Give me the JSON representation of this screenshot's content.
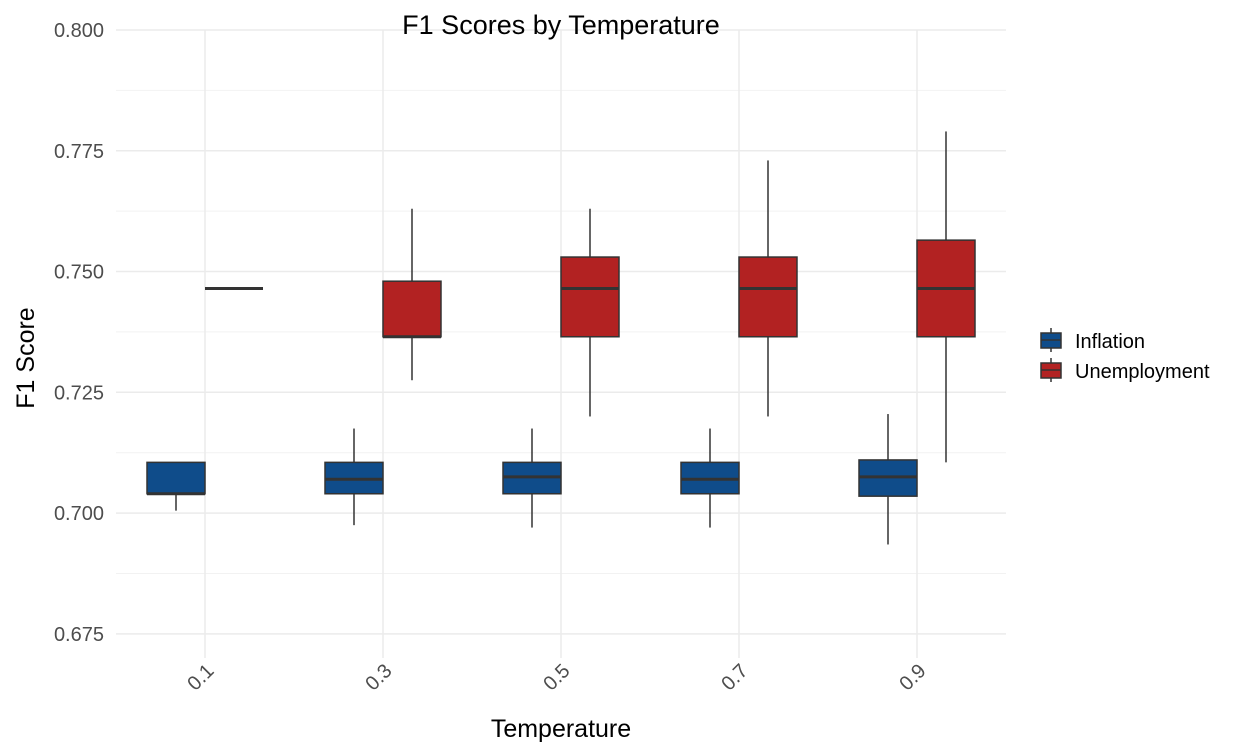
{
  "chart_data": {
    "type": "boxplot",
    "title": "F1 Scores by Temperature",
    "xlabel": "Temperature",
    "ylabel": "F1 Score",
    "categories": [
      "0.1",
      "0.3",
      "0.5",
      "0.7",
      "0.9"
    ],
    "ylim": [
      0.67,
      0.8
    ],
    "yticks": [
      "0.675",
      "0.700",
      "0.725",
      "0.750",
      "0.775",
      "0.800"
    ],
    "yticks_values": [
      0.675,
      0.7,
      0.725,
      0.75,
      0.775,
      0.8
    ],
    "grid": true,
    "legend_position": "right",
    "series": [
      {
        "name": "Inflation",
        "color": "#0f4c8a",
        "boxes": [
          {
            "min": 0.7005,
            "q1": 0.704,
            "median": 0.704,
            "q3": 0.7105,
            "max": 0.7105
          },
          {
            "min": 0.6975,
            "q1": 0.704,
            "median": 0.707,
            "q3": 0.7105,
            "max": 0.7175
          },
          {
            "min": 0.697,
            "q1": 0.704,
            "median": 0.7075,
            "q3": 0.7105,
            "max": 0.7175
          },
          {
            "min": 0.697,
            "q1": 0.704,
            "median": 0.707,
            "q3": 0.7105,
            "max": 0.7175
          },
          {
            "min": 0.6935,
            "q1": 0.7035,
            "median": 0.7075,
            "q3": 0.711,
            "max": 0.7205
          }
        ]
      },
      {
        "name": "Unemployment",
        "color": "#b22222",
        "boxes": [
          {
            "min": 0.7465,
            "q1": 0.7465,
            "median": 0.7465,
            "q3": 0.7465,
            "max": 0.7465
          },
          {
            "min": 0.7275,
            "q1": 0.7365,
            "median": 0.7365,
            "q3": 0.748,
            "max": 0.763
          },
          {
            "min": 0.72,
            "q1": 0.7365,
            "median": 0.7465,
            "q3": 0.753,
            "max": 0.763
          },
          {
            "min": 0.72,
            "q1": 0.7365,
            "median": 0.7465,
            "q3": 0.753,
            "max": 0.773
          },
          {
            "min": 0.7105,
            "q1": 0.7365,
            "median": 0.7465,
            "q3": 0.7565,
            "max": 0.779
          }
        ]
      }
    ]
  }
}
